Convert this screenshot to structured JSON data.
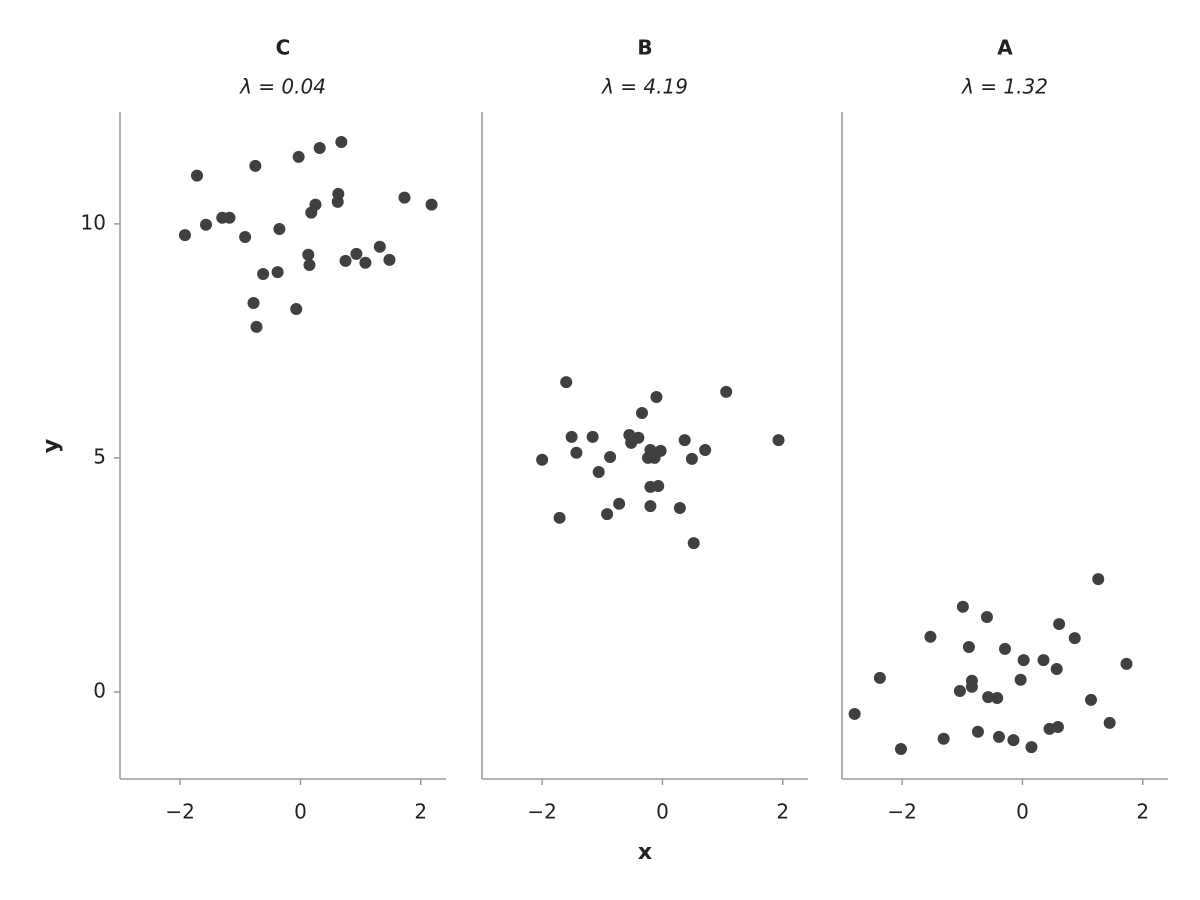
{
  "chart_data": [
    {
      "type": "scatter",
      "title": "C",
      "subtitle": "λ = 0.04",
      "ylabel": "y",
      "color": "#404040",
      "x": [
        -1.92,
        -1.72,
        -1.57,
        -1.3,
        -1.18,
        -0.92,
        -0.75,
        -0.78,
        -0.73,
        -0.62,
        -0.38,
        -0.35,
        -0.07,
        -0.03,
        0.13,
        0.15,
        0.18,
        0.25,
        0.32,
        0.62,
        0.63,
        0.68,
        0.75,
        0.93,
        1.08,
        1.32,
        1.48,
        1.73,
        2.18
      ],
      "y": [
        9.76,
        11.03,
        9.98,
        10.13,
        10.13,
        9.72,
        11.24,
        8.31,
        7.8,
        8.93,
        8.97,
        9.89,
        8.18,
        11.43,
        9.34,
        9.12,
        10.24,
        10.41,
        11.62,
        10.47,
        10.64,
        11.75,
        9.21,
        9.36,
        9.17,
        9.51,
        9.23,
        10.56,
        10.41
      ],
      "xlim": [
        -3,
        2.42
      ],
      "ylim": [
        -1.86,
        12.39
      ],
      "xticks": [
        {
          "value": -2,
          "label": "−2"
        },
        0,
        2
      ],
      "yticks": [
        0,
        5,
        10
      ]
    },
    {
      "type": "scatter",
      "title": "B",
      "subtitle": "λ = 4.19",
      "xlabel": "x",
      "color": "#404040",
      "x": [
        -2.0,
        -1.6,
        -1.71,
        -1.51,
        -1.43,
        -1.16,
        -1.06,
        -0.92,
        -0.87,
        -0.72,
        -0.55,
        -0.52,
        -0.4,
        -0.34,
        -0.24,
        -0.2,
        -0.2,
        -0.2,
        -0.13,
        -0.1,
        -0.07,
        -0.03,
        0.29,
        0.37,
        0.49,
        0.52,
        0.71,
        1.06,
        1.93
      ],
      "y": [
        4.96,
        6.62,
        3.72,
        5.45,
        5.11,
        5.45,
        4.7,
        3.8,
        5.02,
        4.02,
        5.49,
        5.32,
        5.43,
        5.96,
        5.0,
        4.38,
        3.97,
        5.17,
        5.0,
        6.3,
        4.4,
        5.15,
        3.93,
        5.38,
        4.98,
        3.18,
        5.17,
        6.41,
        5.38
      ],
      "xlim": [
        -3,
        2.42
      ],
      "ylim": [
        -1.86,
        12.39
      ],
      "xticks": [
        {
          "value": -2,
          "label": "−2"
        },
        0,
        2
      ]
    },
    {
      "type": "scatter",
      "title": "A",
      "subtitle": "λ = 1.32",
      "color": "#404040",
      "x": [
        -2.79,
        -2.37,
        -2.02,
        -1.53,
        -1.31,
        -1.04,
        -0.99,
        -0.89,
        -0.84,
        -0.84,
        -0.74,
        -0.59,
        -0.57,
        -0.42,
        -0.39,
        -0.29,
        -0.15,
        -0.03,
        0.02,
        0.15,
        0.35,
        0.45,
        0.57,
        0.59,
        0.61,
        0.87,
        1.14,
        1.26,
        1.45,
        1.73
      ],
      "y": [
        -0.47,
        0.3,
        -1.22,
        1.18,
        -1.0,
        0.02,
        1.82,
        0.96,
        0.24,
        0.11,
        -0.85,
        1.6,
        -0.11,
        -0.13,
        -0.96,
        0.92,
        -1.03,
        0.26,
        0.68,
        -1.18,
        0.68,
        -0.79,
        0.49,
        -0.75,
        1.45,
        1.15,
        -0.17,
        2.41,
        -0.66,
        0.6
      ],
      "xlim": [
        -3,
        2.42
      ],
      "ylim": [
        -1.86,
        12.39
      ],
      "xticks": [
        {
          "value": -2,
          "label": "−2"
        },
        0,
        2
      ]
    }
  ]
}
